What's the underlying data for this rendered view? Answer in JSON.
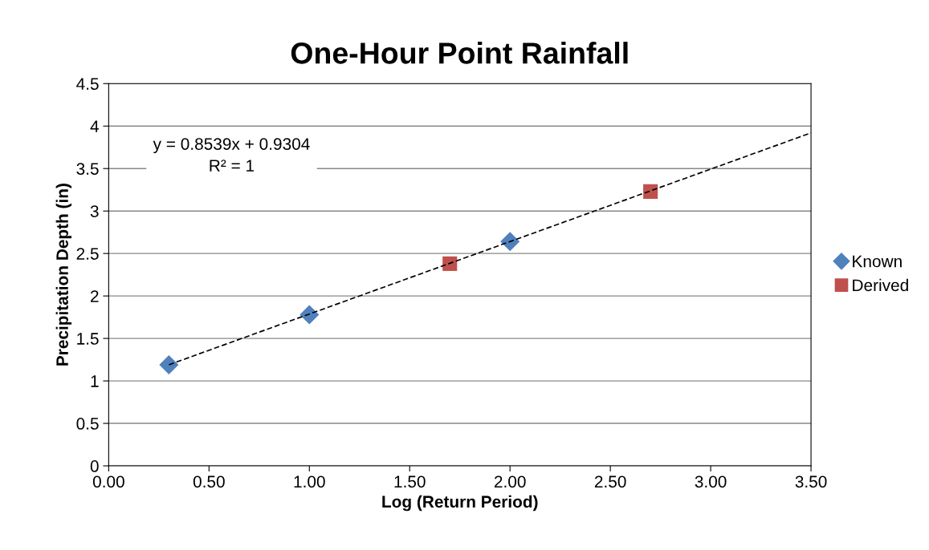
{
  "chart_data": {
    "type": "scatter",
    "title": "One-Hour Point Rainfall",
    "xlabel": "Log (Return Period)",
    "ylabel": "Precipitation Depth (in)",
    "series": [
      {
        "name": "Known",
        "color": "#4f81bd",
        "marker": "diamond",
        "x": [
          0.3,
          1.0,
          2.0
        ],
        "values": [
          1.19,
          1.78,
          2.64
        ]
      },
      {
        "name": "Derived",
        "color": "#c0504d",
        "marker": "square",
        "x": [
          1.7,
          2.7
        ],
        "values": [
          2.38,
          3.23
        ]
      },
      {
        "type": "line",
        "color": "#000000",
        "line_style": "dashed",
        "marker": "none",
        "x": [
          0.3,
          3.5
        ],
        "values": [
          1.19,
          3.92
        ]
      }
    ],
    "xlim": [
      0,
      3.5
    ],
    "ylim": [
      0,
      4.5
    ],
    "xticks": [
      {
        "value": 0,
        "label": "0.00"
      },
      {
        "value": 0.5,
        "label": "0.50"
      },
      {
        "value": 1,
        "label": "1.00"
      },
      {
        "value": 1.5,
        "label": "1.50"
      },
      {
        "value": 2,
        "label": "2.00"
      },
      {
        "value": 2.5,
        "label": "2.50"
      },
      {
        "value": 3,
        "label": "3.00"
      },
      {
        "value": 3.5,
        "label": "3.50"
      }
    ],
    "yticks": [
      0,
      0.5,
      1,
      1.5,
      2,
      2.5,
      3,
      3.5,
      4,
      4.5
    ],
    "grid": "y",
    "legend": "right",
    "annotations": [
      "y = 0.8539x + 0.9304\nR² = 1"
    ]
  }
}
